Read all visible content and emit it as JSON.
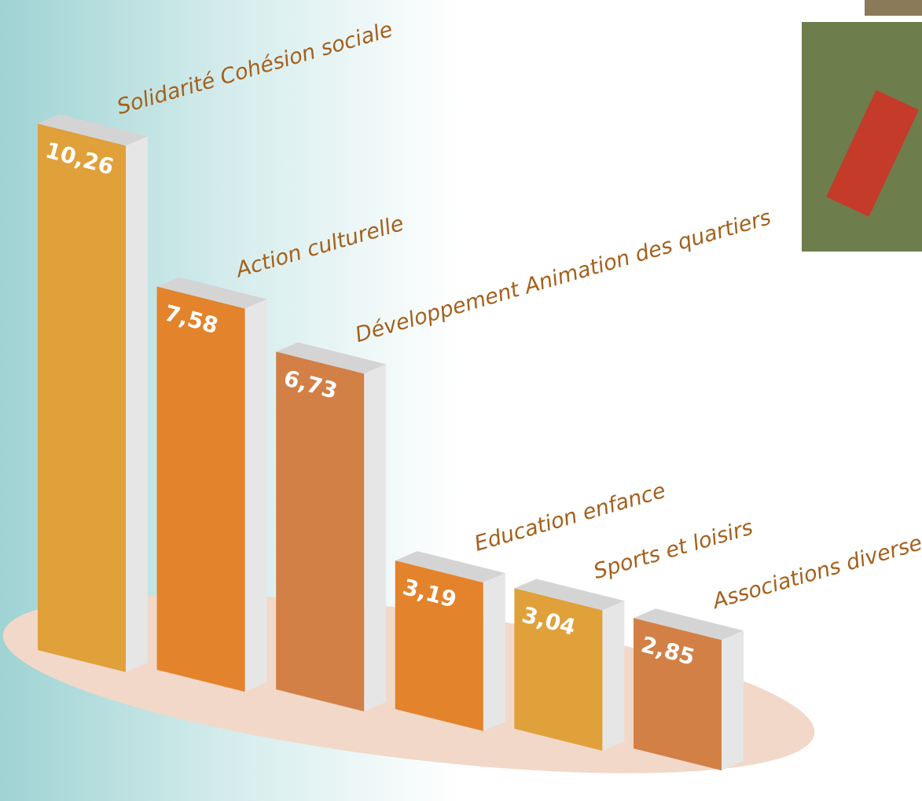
{
  "chart_data": {
    "type": "bar",
    "categories": [
      "Solidarité Cohésion sociale",
      "Action culturelle",
      "Développement Animation des quartiers",
      "Education enfance",
      "Sports et loisirs",
      "Associations diverses"
    ],
    "values": [
      10.26,
      7.58,
      6.73,
      3.19,
      3.04,
      2.85
    ],
    "value_labels": [
      "10,26",
      "7,58",
      "6,73",
      "3,19",
      "3,04",
      "2,85"
    ],
    "colors": [
      "#e0a03a",
      "#e3832c",
      "#d28046",
      "#e3832c",
      "#e0a03a",
      "#d28046"
    ]
  }
}
